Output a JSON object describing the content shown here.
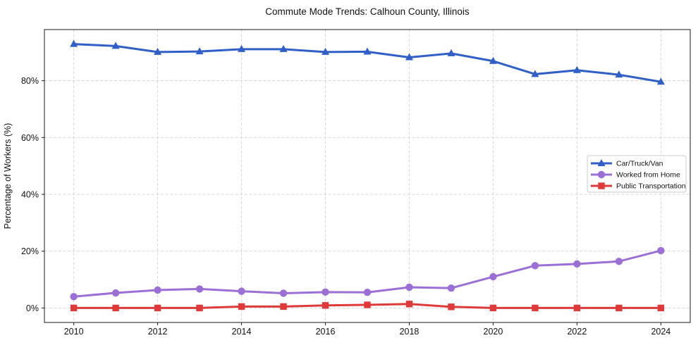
{
  "chart_data": {
    "type": "line",
    "title": "Commute Mode Trends: Calhoun County, Illinois",
    "xlabel": "",
    "ylabel": "Percentage of Workers (%)",
    "x": [
      2010,
      2011,
      2012,
      2013,
      2014,
      2015,
      2016,
      2017,
      2018,
      2019,
      2020,
      2021,
      2022,
      2023,
      2024
    ],
    "series": [
      {
        "name": "Car/Truck/Van",
        "color": "#2f5fc7",
        "marker": "triangle",
        "values": [
          92.9,
          92.2,
          90.1,
          90.3,
          91.1,
          91.1,
          90.1,
          90.2,
          88.2,
          89.6,
          86.9,
          82.3,
          83.7,
          82.1,
          79.6
        ]
      },
      {
        "name": "Worked from Home",
        "color": "#9b6fd6",
        "marker": "circle",
        "values": [
          4.0,
          5.3,
          6.3,
          6.7,
          5.9,
          5.2,
          5.6,
          5.5,
          7.3,
          7.0,
          11.0,
          14.9,
          15.5,
          16.4,
          20.2
        ]
      },
      {
        "name": "Public Transportation",
        "color": "#df3a3a",
        "marker": "square",
        "values": [
          0.0,
          0.0,
          0.0,
          0.0,
          0.5,
          0.5,
          0.9,
          1.1,
          1.4,
          0.4,
          0.0,
          0.0,
          0.0,
          0.0,
          0.0
        ]
      }
    ],
    "xticks": [
      2010,
      2012,
      2014,
      2016,
      2018,
      2020,
      2022,
      2024
    ],
    "xtick_labels": [
      "2010",
      "2012",
      "2014",
      "2016",
      "2018",
      "2020",
      "2022",
      "2024"
    ],
    "yticks": [
      0,
      20,
      40,
      60,
      80
    ],
    "ytick_labels": [
      "0%",
      "20%",
      "40%",
      "60%",
      "80%"
    ],
    "xlim": [
      2009.3,
      2024.7
    ],
    "ylim": [
      -5.1,
      98.0
    ],
    "grid": true,
    "legend": {
      "position": "center-right",
      "border_color": "#cccccc",
      "background": "#ffffff"
    },
    "axis_color": "#1a1a1a",
    "grid_color": "#d2d2d2"
  }
}
